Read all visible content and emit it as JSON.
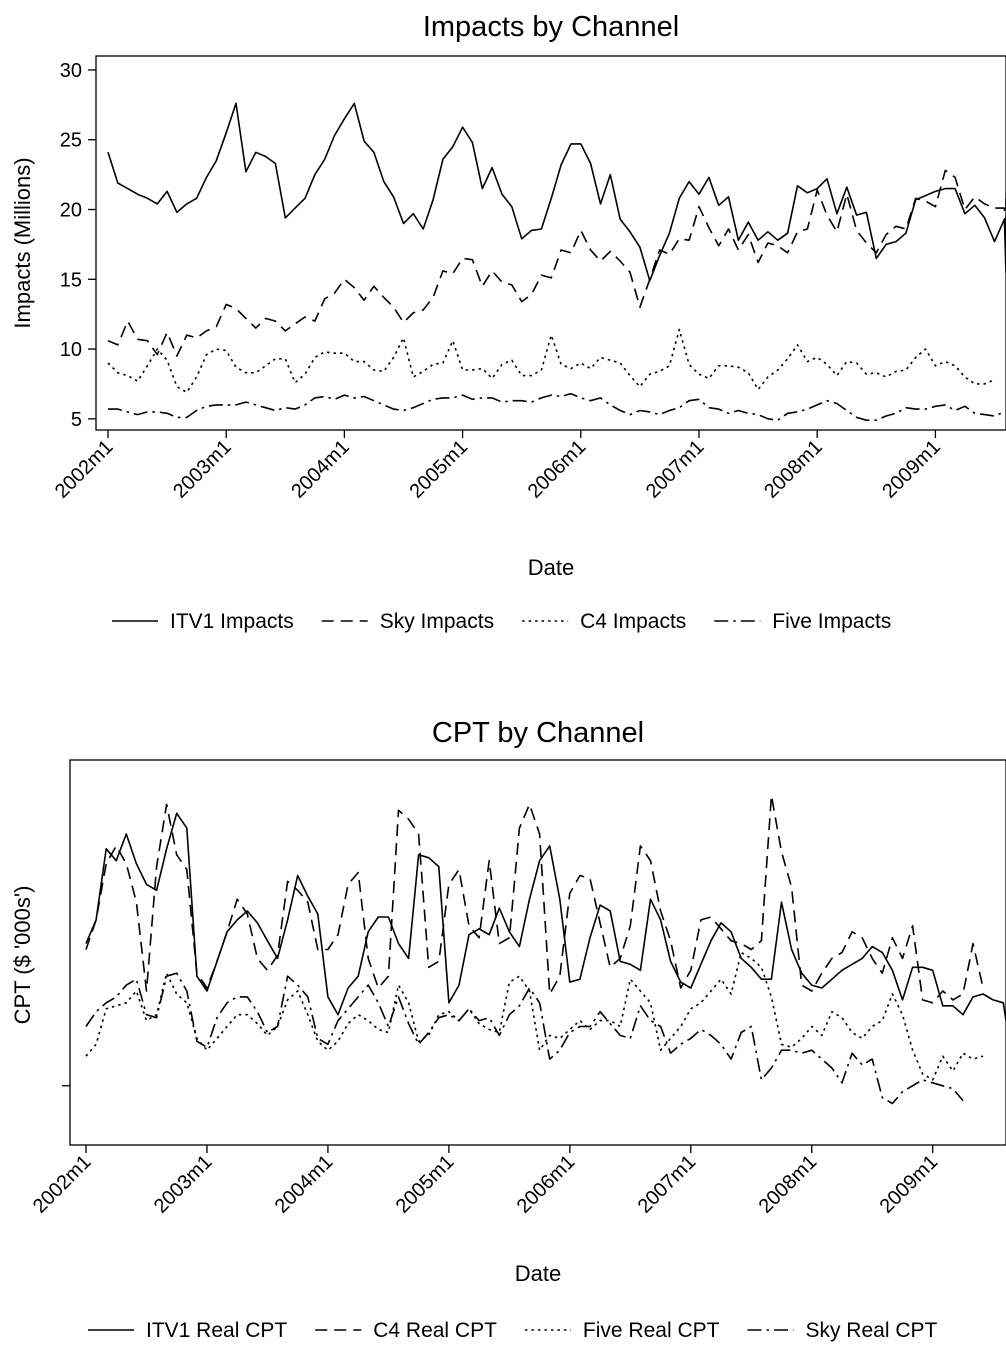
{
  "chart_data": [
    {
      "type": "line",
      "title": "Impacts by Channel",
      "xlabel": "Date",
      "ylabel": "Impacts (Millions)",
      "x_tick_labels": [
        "2002m1",
        "2003m1",
        "2004m1",
        "2005m1",
        "2006m1",
        "2007m1",
        "2008m1",
        "2009m1"
      ],
      "y_ticks": [
        5,
        10,
        15,
        20,
        25,
        30
      ],
      "ylim": [
        4.2,
        31
      ],
      "x_range": [
        "2002m1",
        "2009m7"
      ],
      "grid": false,
      "legend_position": "bottom",
      "series": [
        {
          "name": "ITV1 Impacts",
          "style": "solid",
          "start": "2002m1",
          "values": [
            24.1,
            21.9,
            21.5,
            21.1,
            20.8,
            20.4,
            21.3,
            19.8,
            20.4,
            20.8,
            22.3,
            23.5,
            25.5,
            27.6,
            22.7,
            24.1,
            23.8,
            23.3,
            19.4,
            20.1,
            20.8,
            22.5,
            23.6,
            25.3,
            26.5,
            27.6,
            24.9,
            24.1,
            22.0,
            20.9,
            19.0,
            19.7,
            18.6,
            20.7,
            23.6,
            24.5,
            25.9,
            24.8,
            21.5,
            23.0,
            21.1,
            20.2,
            17.9,
            18.5,
            18.6,
            20.8,
            23.2,
            24.7,
            24.7,
            23.3,
            20.4,
            22.5,
            19.3,
            18.4,
            17.3,
            14.9,
            16.7,
            18.3,
            20.8,
            22.0,
            21.1,
            22.3,
            20.3,
            20.9,
            17.8,
            19.1,
            17.8,
            18.4,
            17.8,
            18.3,
            21.7,
            21.2,
            21.5,
            22.2,
            19.7,
            21.6,
            19.6,
            19.8,
            16.5,
            17.5,
            17.7,
            18.3,
            20.7,
            21.0,
            21.3,
            21.5,
            21.5,
            19.7,
            20.3,
            19.4,
            17.7,
            19.3,
            15.5,
            17.2
          ]
        },
        {
          "name": "Sky Impacts",
          "style": "dashed",
          "start": "2002m1",
          "values": [
            10.6,
            10.3,
            12.0,
            10.7,
            10.6,
            9.6,
            11.2,
            9.5,
            11.0,
            10.8,
            11.3,
            11.6,
            13.2,
            12.9,
            12.2,
            11.5,
            12.2,
            12.0,
            11.3,
            11.8,
            12.3,
            12.0,
            13.6,
            14.0,
            15.0,
            14.4,
            13.5,
            14.5,
            13.7,
            13.0,
            11.9,
            12.6,
            12.8,
            13.7,
            15.6,
            15.4,
            16.5,
            16.4,
            14.5,
            15.6,
            14.8,
            14.6,
            13.4,
            13.9,
            15.3,
            15.1,
            17.1,
            16.9,
            18.5,
            17.1,
            16.3,
            17.0,
            16.3,
            15.5,
            13.0,
            15.0,
            17.1,
            16.8,
            17.9,
            17.8,
            20.2,
            18.7,
            17.4,
            18.6,
            17.1,
            18.2,
            16.2,
            17.6,
            17.4,
            16.9,
            18.4,
            18.6,
            21.4,
            19.6,
            18.4,
            21.1,
            18.5,
            17.6,
            16.9,
            18.2,
            18.8,
            18.6,
            20.8,
            20.6,
            20.2,
            22.8,
            22.3,
            20.0,
            20.9,
            20.4,
            20.1,
            20.1,
            17.0,
            20.8
          ]
        },
        {
          "name": "C4 Impacts",
          "style": "dotted",
          "start": "2002m1",
          "values": [
            9.0,
            8.3,
            8.1,
            7.7,
            8.8,
            10.0,
            9.2,
            7.3,
            6.9,
            8.0,
            9.6,
            10.0,
            9.9,
            8.7,
            8.3,
            8.3,
            8.8,
            9.3,
            9.3,
            7.6,
            8.2,
            9.4,
            9.8,
            9.7,
            9.7,
            9.1,
            9.1,
            8.5,
            8.4,
            9.4,
            10.8,
            8.0,
            8.4,
            8.9,
            9.0,
            10.6,
            8.5,
            8.5,
            8.6,
            7.9,
            8.9,
            9.2,
            8.1,
            8.1,
            8.5,
            11.0,
            8.9,
            8.6,
            9.0,
            8.6,
            9.4,
            9.2,
            9.0,
            8.1,
            7.3,
            8.2,
            8.4,
            8.8,
            11.4,
            8.9,
            8.2,
            7.9,
            8.8,
            8.8,
            8.7,
            8.3,
            7.1,
            8.0,
            8.5,
            9.3,
            10.3,
            9.1,
            9.4,
            8.9,
            8.1,
            9.1,
            9.0,
            8.2,
            8.3,
            8.0,
            8.4,
            8.5,
            9.4,
            10.0,
            8.8,
            9.1,
            8.8,
            8.0,
            7.5,
            7.5,
            7.8
          ]
        },
        {
          "name": "Five Impacts",
          "style": "dashdot",
          "start": "2002m1",
          "values": [
            5.7,
            5.7,
            5.5,
            5.3,
            5.5,
            5.5,
            5.4,
            5.1,
            5.1,
            5.6,
            5.9,
            6.0,
            6.0,
            6.0,
            6.2,
            6.0,
            5.8,
            5.6,
            5.8,
            5.7,
            6.0,
            6.5,
            6.6,
            6.4,
            6.7,
            6.5,
            6.6,
            6.3,
            6.0,
            5.7,
            5.6,
            5.8,
            6.1,
            6.4,
            6.5,
            6.5,
            6.7,
            6.4,
            6.5,
            6.5,
            6.2,
            6.3,
            6.3,
            6.2,
            6.5,
            6.7,
            6.6,
            6.8,
            6.5,
            6.3,
            6.5,
            6.0,
            5.6,
            5.3,
            5.6,
            5.5,
            5.3,
            5.6,
            5.8,
            6.3,
            6.4,
            5.8,
            5.7,
            5.4,
            5.6,
            5.4,
            5.3,
            5.0,
            4.9,
            5.4,
            5.5,
            5.7,
            6.0,
            6.3,
            6.1,
            5.6,
            5.1,
            4.9,
            4.9,
            5.2,
            5.4,
            5.8,
            5.7,
            5.7,
            5.9,
            6.0,
            5.6,
            5.9,
            5.4,
            5.3,
            5.2,
            5.5
          ]
        }
      ]
    },
    {
      "type": "line",
      "title": "CPT by Channel",
      "xlabel": "Date",
      "ylabel": "CPT ($ '000s')",
      "x_tick_labels": [
        "2002m1",
        "2003m1",
        "2004m1",
        "2005m1",
        "2006m1",
        "2007m1",
        "2008m1",
        "2009m1"
      ],
      "y_ticks": [
        0.1
      ],
      "y_tick_labels": [
        ""
      ],
      "ylim": [
        -0.1,
        1.2
      ],
      "x_range": [
        "2002m1",
        "2009m7"
      ],
      "grid": false,
      "legend_position": "bottom",
      "series": [
        {
          "name": "ITV1 Real CPT",
          "style": "solid",
          "start": "2002m1",
          "values": [
            0.58,
            0.66,
            0.9,
            0.86,
            0.95,
            0.85,
            0.78,
            0.76,
            0.9,
            1.02,
            0.97,
            0.47,
            0.42,
            0.52,
            0.62,
            0.66,
            0.69,
            0.65,
            0.59,
            0.53,
            0.66,
            0.81,
            0.74,
            0.68,
            0.4,
            0.34,
            0.43,
            0.47,
            0.62,
            0.67,
            0.67,
            0.58,
            0.53,
            0.88,
            0.87,
            0.84,
            0.38,
            0.44,
            0.61,
            0.63,
            0.61,
            0.7,
            0.62,
            0.57,
            0.73,
            0.86,
            0.91,
            0.73,
            0.45,
            0.46,
            0.6,
            0.71,
            0.69,
            0.52,
            0.51,
            0.49,
            0.73,
            0.66,
            0.52,
            0.45,
            0.43,
            0.51,
            0.59,
            0.65,
            0.62,
            0.53,
            0.5,
            0.46,
            0.46,
            0.72,
            0.56,
            0.48,
            0.44,
            0.43,
            0.46,
            0.49,
            0.51,
            0.53,
            0.57,
            0.55,
            0.49,
            0.39,
            0.5,
            0.5,
            0.49,
            0.37,
            0.37,
            0.34,
            0.4,
            0.41,
            0.39,
            0.38,
            0.32
          ]
        },
        {
          "name": "C4 Real CPT",
          "style": "dashed",
          "start": "2002m1",
          "values": [
            0.56,
            0.66,
            0.85,
            0.91,
            0.85,
            0.72,
            0.42,
            0.84,
            1.05,
            0.88,
            0.83,
            0.48,
            0.43,
            0.52,
            0.62,
            0.73,
            0.68,
            0.53,
            0.49,
            0.54,
            0.79,
            0.76,
            0.72,
            0.56,
            0.56,
            0.61,
            0.78,
            0.82,
            0.53,
            0.43,
            0.47,
            1.03,
            1.0,
            0.95,
            0.5,
            0.52,
            0.78,
            0.83,
            0.64,
            0.6,
            0.86,
            0.58,
            0.6,
            0.97,
            1.05,
            0.95,
            0.41,
            0.47,
            0.75,
            0.81,
            0.8,
            0.65,
            0.5,
            0.53,
            0.64,
            0.91,
            0.86,
            0.69,
            0.59,
            0.43,
            0.49,
            0.66,
            0.67,
            0.63,
            0.59,
            0.58,
            0.56,
            0.59,
            1.08,
            0.89,
            0.77,
            0.44,
            0.42,
            0.48,
            0.53,
            0.55,
            0.62,
            0.6,
            0.53,
            0.48,
            0.6,
            0.53,
            0.64,
            0.39,
            0.38,
            0.42,
            0.39,
            0.41,
            0.58,
            0.43
          ]
        },
        {
          "name": "Five Real CPT",
          "style": "dotted",
          "start": "2002m1",
          "values": [
            0.2,
            0.24,
            0.36,
            0.37,
            0.38,
            0.42,
            0.32,
            0.34,
            0.48,
            0.41,
            0.38,
            0.26,
            0.22,
            0.26,
            0.3,
            0.34,
            0.34,
            0.31,
            0.27,
            0.3,
            0.39,
            0.42,
            0.34,
            0.25,
            0.22,
            0.25,
            0.31,
            0.34,
            0.32,
            0.29,
            0.28,
            0.44,
            0.38,
            0.25,
            0.27,
            0.34,
            0.35,
            0.32,
            0.36,
            0.31,
            0.29,
            0.28,
            0.45,
            0.47,
            0.42,
            0.22,
            0.27,
            0.26,
            0.29,
            0.32,
            0.29,
            0.32,
            0.32,
            0.3,
            0.46,
            0.42,
            0.38,
            0.22,
            0.26,
            0.3,
            0.36,
            0.38,
            0.42,
            0.46,
            0.41,
            0.55,
            0.53,
            0.5,
            0.4,
            0.24,
            0.23,
            0.26,
            0.3,
            0.27,
            0.35,
            0.33,
            0.28,
            0.26,
            0.3,
            0.32,
            0.41,
            0.34,
            0.22,
            0.14,
            0.12,
            0.2,
            0.15,
            0.21,
            0.19,
            0.2
          ]
        },
        {
          "name": "Sky Real CPT",
          "style": "dashdot",
          "start": "2002m1",
          "values": [
            0.3,
            0.35,
            0.38,
            0.4,
            0.44,
            0.46,
            0.34,
            0.33,
            0.47,
            0.48,
            0.42,
            0.25,
            0.23,
            0.33,
            0.38,
            0.4,
            0.4,
            0.35,
            0.28,
            0.3,
            0.47,
            0.44,
            0.4,
            0.26,
            0.24,
            0.32,
            0.36,
            0.4,
            0.44,
            0.38,
            0.3,
            0.4,
            0.31,
            0.24,
            0.28,
            0.33,
            0.34,
            0.32,
            0.36,
            0.32,
            0.33,
            0.27,
            0.34,
            0.37,
            0.43,
            0.38,
            0.19,
            0.22,
            0.28,
            0.3,
            0.3,
            0.35,
            0.31,
            0.27,
            0.26,
            0.37,
            0.32,
            0.3,
            0.21,
            0.24,
            0.26,
            0.29,
            0.27,
            0.24,
            0.19,
            0.28,
            0.3,
            0.12,
            0.16,
            0.22,
            0.22,
            0.21,
            0.22,
            0.19,
            0.16,
            0.11,
            0.21,
            0.17,
            0.19,
            0.06,
            0.04,
            0.08,
            0.1,
            0.12,
            0.11,
            0.1,
            0.09,
            0.05
          ]
        }
      ]
    }
  ]
}
